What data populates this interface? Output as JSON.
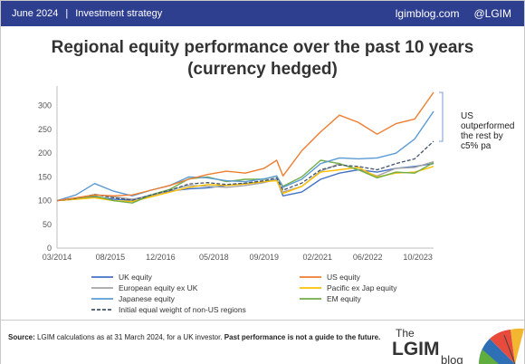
{
  "header": {
    "date": "June 2024",
    "section": "Investment strategy",
    "site": "lgimblog.com",
    "handle": "@LGIM"
  },
  "title_line1": "Regional equity performance over the past 10 years",
  "title_line2": "(currency hedged)",
  "annotation": [
    "US",
    "outperformed",
    "the rest by",
    "c5% pa"
  ],
  "footer": {
    "source_label": "Source:",
    "source_text": " LGIM calculations as at 31 March 2024, for a UK investor. ",
    "disclaimer": "Past performance is not a guide to the future."
  },
  "logo": {
    "word1": "The",
    "word2": "LGIM",
    "word3": "blog"
  },
  "colors": {
    "uk": "#4472c4",
    "us": "#ed7d31",
    "europe": "#a5a5a5",
    "pacific": "#ffc000",
    "japan": "#5b9bd5",
    "em": "#70ad47",
    "equal": "#44546a",
    "header": "#2f3f8f"
  },
  "chart_data": {
    "type": "line",
    "x": [
      "03/2014",
      "09/2014",
      "03/2015",
      "09/2015",
      "03/2016",
      "09/2016",
      "03/2017",
      "09/2017",
      "03/2018",
      "09/2018",
      "03/2019",
      "09/2019",
      "01/2020",
      "03/2020",
      "09/2020",
      "03/2021",
      "09/2021",
      "03/2022",
      "09/2022",
      "03/2023",
      "09/2023",
      "03/2024"
    ],
    "x_tick_labels": [
      "03/2014",
      "08/2015",
      "12/2016",
      "05/2018",
      "09/2019",
      "02/2021",
      "06/2022",
      "10/2023"
    ],
    "y_ticks": [
      0,
      50,
      100,
      150,
      200,
      250,
      300
    ],
    "ylim": [
      0,
      330
    ],
    "series": [
      {
        "name": "UK equity",
        "key": "uk",
        "values": [
          100,
          104,
          108,
          103,
          101,
          112,
          120,
          125,
          127,
          132,
          136,
          140,
          145,
          110,
          118,
          145,
          158,
          165,
          160,
          168,
          172,
          178
        ]
      },
      {
        "name": "US equity",
        "key": "us",
        "values": [
          100,
          106,
          112,
          110,
          112,
          122,
          132,
          145,
          155,
          162,
          158,
          168,
          185,
          152,
          205,
          245,
          280,
          265,
          240,
          262,
          272,
          328
        ]
      },
      {
        "name": "European equity ex UK",
        "key": "europe",
        "values": [
          100,
          103,
          113,
          108,
          103,
          110,
          122,
          132,
          130,
          128,
          132,
          138,
          145,
          118,
          130,
          162,
          178,
          165,
          152,
          168,
          170,
          182
        ]
      },
      {
        "name": "Pacific ex Jap equity",
        "key": "pacific",
        "values": [
          100,
          103,
          106,
          100,
          98,
          108,
          118,
          128,
          134,
          132,
          135,
          140,
          142,
          115,
          130,
          160,
          165,
          170,
          150,
          158,
          160,
          172
        ]
      },
      {
        "name": "Japanese equity",
        "key": "japan",
        "values": [
          100,
          112,
          136,
          120,
          110,
          122,
          132,
          150,
          148,
          142,
          140,
          146,
          152,
          128,
          145,
          178,
          190,
          188,
          190,
          200,
          230,
          288
        ]
      },
      {
        "name": "EM equity",
        "key": "em",
        "values": [
          100,
          105,
          110,
          100,
          95,
          112,
          124,
          146,
          150,
          140,
          145,
          145,
          152,
          130,
          150,
          185,
          178,
          165,
          148,
          160,
          158,
          180
        ]
      },
      {
        "name": "Initial equal weight of non-US regions",
        "key": "equal",
        "values": [
          100,
          105,
          113,
          106,
          101,
          112,
          122,
          135,
          138,
          134,
          137,
          142,
          148,
          122,
          137,
          165,
          175,
          172,
          165,
          178,
          188,
          225
        ],
        "dashed": true
      }
    ]
  }
}
